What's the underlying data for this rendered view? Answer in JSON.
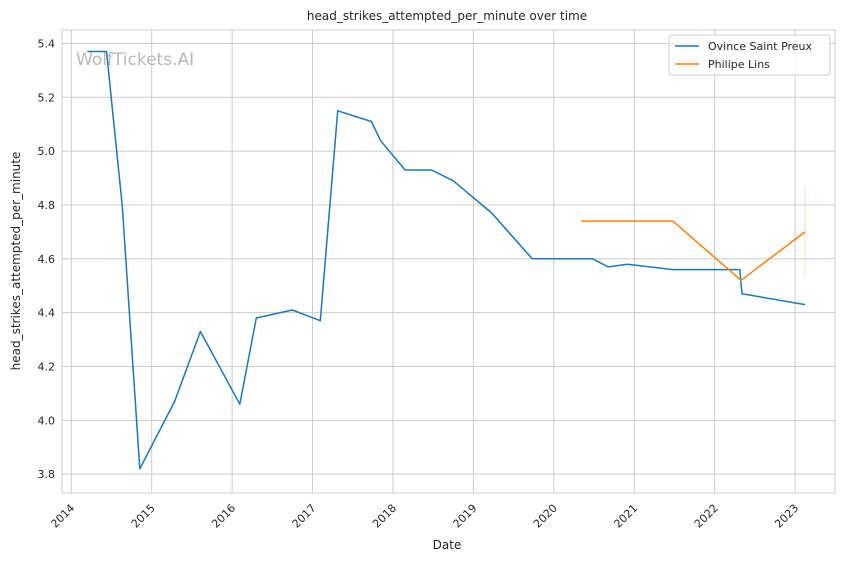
{
  "watermark": "WolfTickets.AI",
  "chart_data": {
    "type": "line",
    "title": "head_strikes_attempted_per_minute over time",
    "xlabel": "Date",
    "ylabel": "head_strikes_attempted_per_minute",
    "x_ticks": [
      "2014",
      "2015",
      "2016",
      "2017",
      "2018",
      "2019",
      "2020",
      "2021",
      "2022",
      "2023"
    ],
    "y_ticks": [
      "3.8",
      "4.0",
      "4.2",
      "4.4",
      "4.6",
      "4.8",
      "5.0",
      "5.2",
      "5.4"
    ],
    "xlim": [
      "2013-11-20",
      "2023-07-01"
    ],
    "ylim": [
      3.73,
      5.45
    ],
    "grid": true,
    "legend_position": "top-right",
    "series": [
      {
        "name": "Ovince Saint Preux",
        "color": "#1f77b4",
        "points": [
          [
            "2014-03-15",
            5.37
          ],
          [
            "2014-06-10",
            5.37
          ],
          [
            "2014-08-20",
            4.8
          ],
          [
            "2014-11-08",
            3.82
          ],
          [
            "2015-04-15",
            4.07
          ],
          [
            "2015-08-10",
            4.33
          ],
          [
            "2016-02-05",
            4.06
          ],
          [
            "2016-04-20",
            4.38
          ],
          [
            "2016-10-01",
            4.41
          ],
          [
            "2017-02-05",
            4.37
          ],
          [
            "2017-04-25",
            5.15
          ],
          [
            "2017-09-25",
            5.11
          ],
          [
            "2017-11-05",
            5.04
          ],
          [
            "2018-02-25",
            4.93
          ],
          [
            "2018-06-25",
            4.93
          ],
          [
            "2018-10-01",
            4.89
          ],
          [
            "2019-03-25",
            4.77
          ],
          [
            "2019-09-25",
            4.6
          ],
          [
            "2020-06-25",
            4.6
          ],
          [
            "2020-09-05",
            4.57
          ],
          [
            "2020-12-01",
            4.58
          ],
          [
            "2021-06-25",
            4.56
          ],
          [
            "2022-04-25",
            4.56
          ],
          [
            "2022-05-05",
            4.47
          ],
          [
            "2023-02-15",
            4.43
          ]
        ]
      },
      {
        "name": "Philipe Lins",
        "color": "#ff7f0e",
        "points": [
          [
            "2020-05-05",
            4.74
          ],
          [
            "2021-06-25",
            4.74
          ],
          [
            "2022-05-01",
            4.52
          ],
          [
            "2023-02-15",
            4.7
          ]
        ]
      }
    ]
  }
}
